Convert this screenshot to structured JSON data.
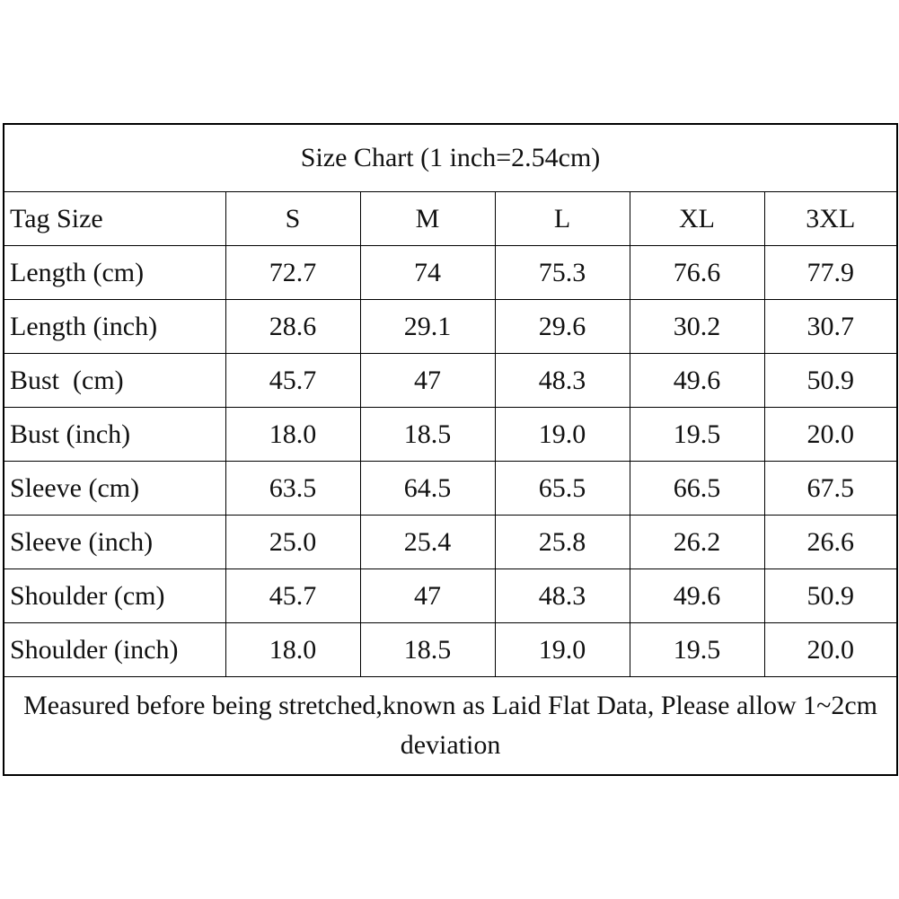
{
  "table": {
    "title": "Size Chart (1 inch=2.54cm)",
    "header": [
      "Tag Size",
      "S",
      "M",
      "L",
      "XL",
      "3XL"
    ],
    "rows": [
      [
        "Length (cm)",
        "72.7",
        "74",
        "75.3",
        "76.6",
        "77.9"
      ],
      [
        "Length (inch)",
        "28.6",
        "29.1",
        "29.6",
        "30.2",
        "30.7"
      ],
      [
        "Bust  (cm)",
        "45.7",
        "47",
        "48.3",
        "49.6",
        "50.9"
      ],
      [
        "Bust (inch)",
        "18.0",
        "18.5",
        "19.0",
        "19.5",
        "20.0"
      ],
      [
        "Sleeve (cm)",
        "63.5",
        "64.5",
        "65.5",
        "66.5",
        "67.5"
      ],
      [
        "Sleeve (inch)",
        "25.0",
        "25.4",
        "25.8",
        "26.2",
        "26.6"
      ],
      [
        "Shoulder (cm)",
        "45.7",
        "47",
        "48.3",
        "49.6",
        "50.9"
      ],
      [
        "Shoulder (inch)",
        "18.0",
        "18.5",
        "19.0",
        "19.5",
        "20.0"
      ]
    ],
    "note": "Measured before being stretched,known as Laid Flat Data, Please allow 1~2cm deviation"
  }
}
